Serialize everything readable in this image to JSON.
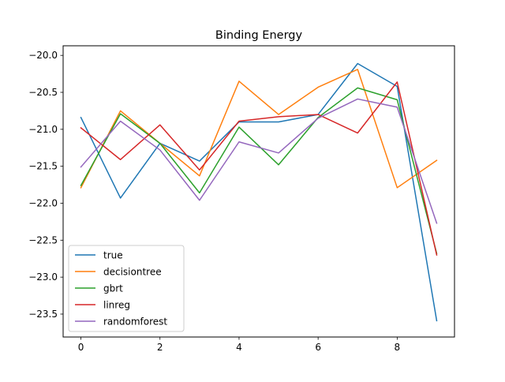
{
  "chart_data": {
    "type": "line",
    "title": "Binding Energy",
    "xlabel": "",
    "ylabel": "",
    "x": [
      0,
      1,
      2,
      3,
      4,
      5,
      6,
      7,
      8,
      9
    ],
    "xlim": [
      -0.45,
      9.45
    ],
    "ylim": [
      -23.81,
      -19.87
    ],
    "xticks": [
      0,
      2,
      4,
      6,
      8
    ],
    "yticks": [
      -20.0,
      -20.5,
      -21.0,
      -21.5,
      -22.0,
      -22.5,
      -23.0,
      -23.5
    ],
    "ytick_labels": [
      "−20.0",
      "−20.5",
      "−21.0",
      "−21.5",
      "−22.0",
      "−22.5",
      "−23.0",
      "−23.5"
    ],
    "grid": false,
    "legend_position": "lower-left",
    "series": [
      {
        "name": "true",
        "color": "#1f77b4",
        "values": [
          -20.84,
          -21.93,
          -21.19,
          -21.43,
          -20.9,
          -20.9,
          -20.8,
          -20.11,
          -20.42,
          -23.59
        ]
      },
      {
        "name": "decisiontree",
        "color": "#ff7f0e",
        "values": [
          -21.79,
          -20.75,
          -21.19,
          -21.63,
          -20.35,
          -20.8,
          -20.43,
          -20.19,
          -21.79,
          -21.42
        ]
      },
      {
        "name": "gbrt",
        "color": "#2ca02c",
        "values": [
          -21.76,
          -20.79,
          -21.19,
          -21.86,
          -20.97,
          -21.48,
          -20.84,
          -20.44,
          -20.6,
          -22.68
        ]
      },
      {
        "name": "linreg",
        "color": "#d62728",
        "values": [
          -20.98,
          -21.41,
          -20.94,
          -21.55,
          -20.89,
          -20.83,
          -20.8,
          -21.05,
          -20.36,
          -22.7
        ]
      },
      {
        "name": "randomforest",
        "color": "#9467bd",
        "values": [
          -21.51,
          -20.89,
          -21.28,
          -21.96,
          -21.17,
          -21.32,
          -20.85,
          -20.59,
          -20.7,
          -22.27
        ]
      }
    ]
  }
}
